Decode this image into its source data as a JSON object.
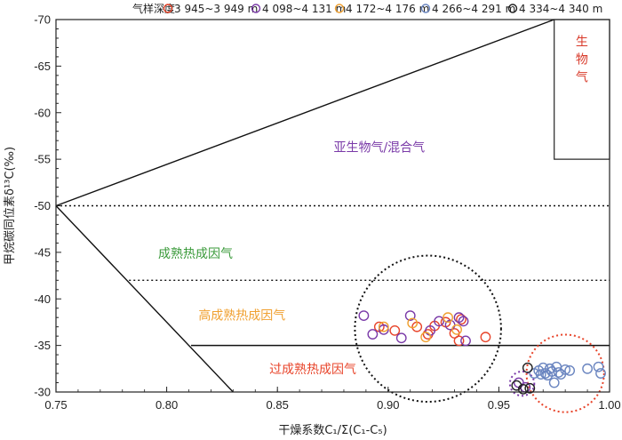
{
  "chart_data": {
    "type": "scatter",
    "xlabel": "干燥系数C₁/Σ(C₁-C₅)",
    "ylabel": "甲烷碳同位素δ¹³C(‰)",
    "xlim": [
      0.75,
      1.0
    ],
    "ylim": [
      -70,
      -30
    ],
    "x_ticks": [
      "0.75",
      "0.80",
      "0.85",
      "0.90",
      "0.95",
      "1.00"
    ],
    "y_ticks": [
      "-70",
      "-65",
      "-60",
      "-55",
      "-50",
      "-45",
      "-40",
      "-35",
      "-30"
    ],
    "legend_title": "气样深度",
    "legend_position": "top",
    "grid": false,
    "series": [
      {
        "name": "3 945~3 949 m",
        "color": "#e8452b",
        "points": [
          [
            0.896,
            -37.0
          ],
          [
            0.903,
            -36.6
          ],
          [
            0.913,
            -37.0
          ],
          [
            0.918,
            -36.2
          ],
          [
            0.921,
            -37.1
          ],
          [
            0.926,
            -37.5
          ],
          [
            0.93,
            -36.3
          ],
          [
            0.933,
            -37.8
          ],
          [
            0.932,
            -35.5
          ],
          [
            0.944,
            -35.9
          ]
        ]
      },
      {
        "name": "4 098~4 131 m",
        "color": "#7a3aa8",
        "points": [
          [
            0.889,
            -38.2
          ],
          [
            0.893,
            -36.2
          ],
          [
            0.898,
            -36.7
          ],
          [
            0.906,
            -35.8
          ],
          [
            0.91,
            -38.2
          ],
          [
            0.919,
            -36.6
          ],
          [
            0.923,
            -37.6
          ],
          [
            0.928,
            -37.2
          ],
          [
            0.932,
            -38.0
          ],
          [
            0.934,
            -37.6
          ],
          [
            0.935,
            -35.5
          ],
          [
            0.959,
            -31.0
          ],
          [
            0.962,
            -30.5
          ]
        ]
      },
      {
        "name": "4 172~4 176 m",
        "color": "#f0a030",
        "points": [
          [
            0.898,
            -37.0
          ],
          [
            0.911,
            -37.4
          ],
          [
            0.917,
            -35.9
          ],
          [
            0.927,
            -38.0
          ],
          [
            0.931,
            -36.7
          ]
        ]
      },
      {
        "name": "4 266~4 291 m",
        "color": "#6a85c0",
        "points": [
          [
            0.966,
            -32.0
          ],
          [
            0.968,
            -32.3
          ],
          [
            0.969,
            -31.9
          ],
          [
            0.97,
            -32.6
          ],
          [
            0.971,
            -32.0
          ],
          [
            0.972,
            -31.8
          ],
          [
            0.973,
            -32.5
          ],
          [
            0.974,
            -32.2
          ],
          [
            0.975,
            -31.0
          ],
          [
            0.976,
            -32.7
          ],
          [
            0.977,
            -32.1
          ],
          [
            0.978,
            -31.9
          ],
          [
            0.98,
            -32.4
          ],
          [
            0.982,
            -32.3
          ],
          [
            0.99,
            -32.5
          ],
          [
            0.995,
            -32.7
          ],
          [
            0.996,
            -32.0
          ]
        ]
      },
      {
        "name": "4 334~4 340 m",
        "color": "#222222",
        "points": [
          [
            0.958,
            -30.7
          ],
          [
            0.961,
            -30.3
          ],
          [
            0.964,
            -30.4
          ],
          [
            0.963,
            -32.6
          ]
        ]
      }
    ],
    "regions": [
      {
        "label": "亚生物气/混合气",
        "color": "#7a3aa8"
      },
      {
        "label": "成熟热成因气",
        "color": "#3a9a3a"
      },
      {
        "label": "高成熟热成因气",
        "color": "#f0a030"
      },
      {
        "label": "过成熟热成因气",
        "color": "#e8452b"
      },
      {
        "label": "生物气",
        "color": "#d83a2a"
      }
    ]
  }
}
